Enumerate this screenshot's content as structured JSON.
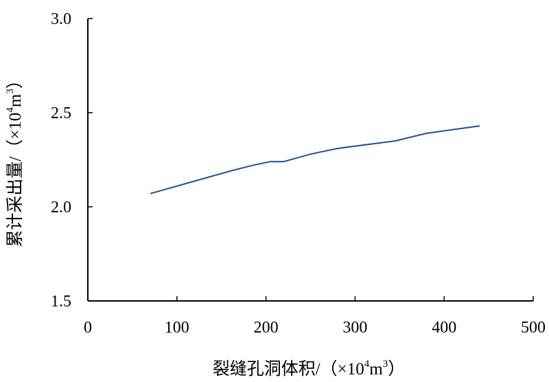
{
  "chart_data": {
    "type": "line",
    "x": [
      70,
      130,
      160,
      185,
      205,
      220,
      250,
      280,
      345,
      380,
      440
    ],
    "series": [
      {
        "values": [
          2.07,
          2.15,
          2.19,
          2.22,
          2.24,
          2.24,
          2.28,
          2.31,
          2.35,
          2.39,
          2.43
        ],
        "color": "#1f4e9b"
      }
    ],
    "xlim": [
      0,
      500
    ],
    "ylim": [
      1.5,
      3.0
    ],
    "x_ticks": [
      "0",
      "100",
      "200",
      "300",
      "400",
      "500"
    ],
    "y_ticks": [
      "1.5",
      "2.0",
      "2.5",
      "3.0"
    ],
    "xlabel": {
      "main": "裂缝孔洞体积/（×10",
      "sup1": "4",
      "mid": "m",
      "sup2": "3",
      "end": "）"
    },
    "ylabel": {
      "main": "累计采出量/（×10",
      "sup1": "4",
      "mid": "m",
      "sup2": "3",
      "end": "）"
    },
    "grid": false,
    "axis_color": "#000000"
  }
}
